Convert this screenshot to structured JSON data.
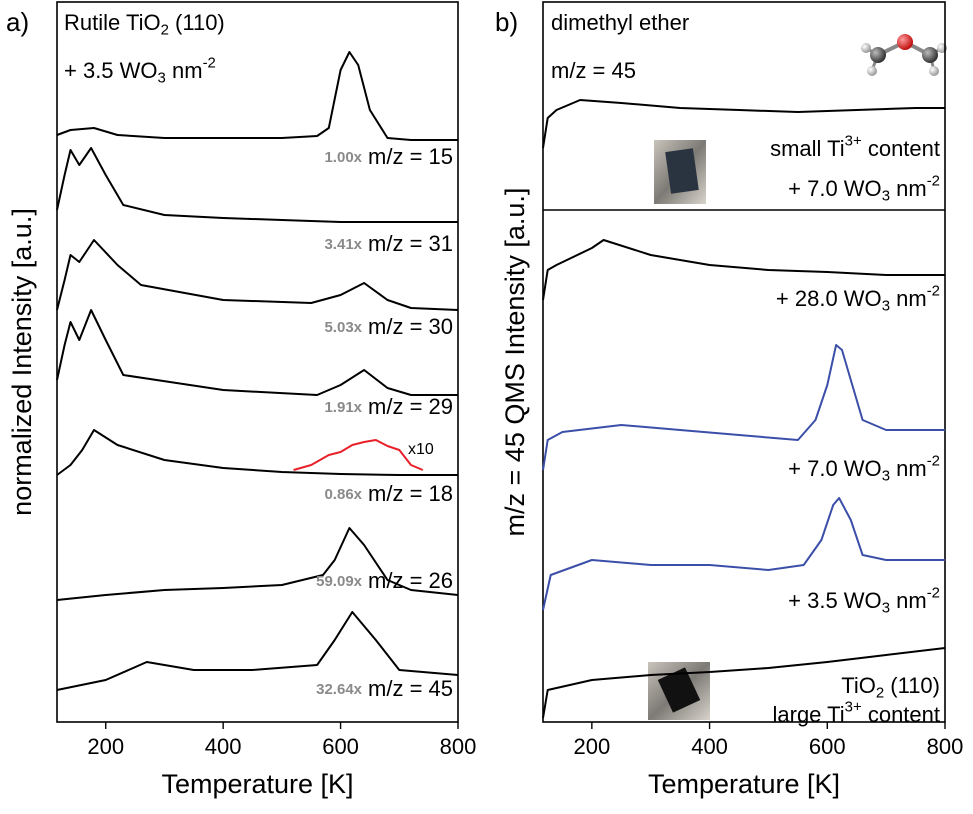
{
  "chart_data": [
    {
      "type": "line",
      "panel": "a)",
      "annotations": [
        [
          "Rutile TiO",
          "2",
          " (110)"
        ],
        [
          "+ 3.5 WO",
          "3",
          " nm",
          "-2"
        ]
      ],
      "x_label": "Temperature [K]",
      "y_label": "normalized Intensity [a.u.]",
      "xlim": [
        117,
        800
      ],
      "xticks": [
        200,
        400,
        600,
        800
      ],
      "ylim": [
        0,
        72
      ],
      "series": [
        {
          "name": [
            "m/z = 15"
          ],
          "factor": "1.00x",
          "color": "#000000",
          "x": [
            117,
            140,
            180,
            220,
            300,
            400,
            500,
            560,
            580,
            600,
            615,
            630,
            650,
            680,
            720,
            800
          ],
          "values": [
            58.7,
            59.2,
            59.4,
            58.7,
            58.4,
            58.4,
            58.4,
            58.6,
            59.4,
            65.2,
            67,
            65.7,
            61.2,
            58.4,
            58.2,
            58.2
          ]
        },
        {
          "name": [
            "m/z = 31"
          ],
          "factor": "3.41x",
          "color": "#000000",
          "x": [
            117,
            130,
            140,
            155,
            175,
            200,
            230,
            300,
            400,
            500,
            600,
            700,
            800
          ],
          "values": [
            51.2,
            54.7,
            57.2,
            55.7,
            57.4,
            54.7,
            51.7,
            50.7,
            50.4,
            50.2,
            50,
            50,
            50
          ]
        },
        {
          "name": [
            "m/z = 30"
          ],
          "factor": "5.03x",
          "color": "#000000",
          "x": [
            117,
            130,
            140,
            155,
            180,
            220,
            260,
            400,
            550,
            600,
            640,
            680,
            720,
            800
          ],
          "values": [
            41.2,
            44.2,
            46.7,
            46,
            48.2,
            45.7,
            43.7,
            42.2,
            41.9,
            42.7,
            43.9,
            42.2,
            41.4,
            41.2
          ]
        },
        {
          "name": [
            "m/z = 29"
          ],
          "factor": "1.91x",
          "color": "#000000",
          "x": [
            117,
            130,
            140,
            155,
            175,
            200,
            230,
            400,
            560,
            600,
            640,
            680,
            720,
            800
          ],
          "values": [
            34.2,
            37.7,
            40,
            38.2,
            41.2,
            38.2,
            34.7,
            33.2,
            32.7,
            33.7,
            35.2,
            33.4,
            32.7,
            32.7
          ]
        },
        {
          "name": [
            "m/z = 18"
          ],
          "factor": "0.86x",
          "color": "#000000",
          "x": [
            117,
            140,
            160,
            180,
            220,
            300,
            400,
            500,
            600,
            700,
            800
          ],
          "values": [
            24.7,
            25.7,
            27.2,
            29.2,
            27.7,
            26.2,
            25.4,
            25,
            24.8,
            24.7,
            24.7
          ]
        },
        {
          "name": [
            "x10"
          ],
          "color": "#e8202a",
          "x": [
            520,
            550,
            580,
            600,
            620,
            640,
            660,
            680,
            700,
            720,
            740
          ],
          "values": [
            25.2,
            25.7,
            26.7,
            27,
            27.7,
            28,
            28.2,
            27.6,
            27.2,
            25.7,
            25.2
          ]
        },
        {
          "name": [
            "m/z = 26"
          ],
          "factor": "59.09x",
          "color": "#000000",
          "x": [
            117,
            200,
            300,
            400,
            500,
            570,
            590,
            615,
            640,
            680,
            720,
            800
          ],
          "values": [
            12.2,
            12.7,
            13.2,
            13.4,
            13.7,
            14.7,
            16.2,
            19.4,
            17.7,
            14.2,
            13.2,
            12.7
          ]
        },
        {
          "name": [
            "m/z = 45"
          ],
          "factor": "32.64x",
          "color": "#000000",
          "x": [
            117,
            200,
            270,
            350,
            450,
            560,
            590,
            620,
            660,
            700,
            800
          ],
          "values": [
            3.2,
            4.2,
            6,
            5.2,
            5.2,
            5.7,
            8.2,
            11,
            8.2,
            5.2,
            4.7
          ]
        }
      ]
    },
    {
      "type": "line",
      "panel": "b)",
      "annotations": [
        [
          "dimethyl ether"
        ],
        [
          "m/z = 45"
        ],
        [
          "small Ti",
          "3+",
          " content"
        ],
        [
          "large Ti",
          "3+",
          " content"
        ]
      ],
      "x_label": "Temperature [K]",
      "y_label": "m/z = 45 QMS Intensity [a.u.]",
      "xlim": [
        117,
        800
      ],
      "xticks": [
        200,
        400,
        600,
        800
      ],
      "ylim": [
        0,
        72
      ],
      "series": [
        {
          "name": [
            "+ 7.0 WO",
            "3",
            " nm",
            "-2"
          ],
          "color": "#000000",
          "x": [
            117,
            125,
            140,
            180,
            250,
            350,
            450,
            550,
            650,
            750,
            800
          ],
          "values": [
            57.4,
            60.4,
            61.2,
            62.2,
            61.9,
            61.4,
            61.2,
            61,
            61.2,
            61.4,
            61.4
          ]
        },
        {
          "name": [
            "+ 28.0 WO",
            "3",
            " nm",
            "-2"
          ],
          "color": "#000000",
          "x": [
            117,
            125,
            140,
            200,
            220,
            300,
            400,
            500,
            600,
            700,
            800
          ],
          "values": [
            42.2,
            45.2,
            45.7,
            47.4,
            48.2,
            46.7,
            45.7,
            45.2,
            45,
            44.7,
            44.7
          ]
        },
        {
          "name": [
            "+ 7.0 WO",
            "3",
            " nm",
            "-2"
          ],
          "color": "#3c4fa8",
          "x": [
            117,
            125,
            150,
            250,
            350,
            450,
            550,
            580,
            600,
            615,
            625,
            640,
            660,
            700,
            800
          ],
          "values": [
            25.2,
            28.2,
            29,
            29.7,
            29.2,
            28.7,
            28.2,
            30.2,
            33.7,
            37.7,
            37.2,
            34.2,
            30.2,
            29.2,
            29.2
          ]
        },
        {
          "name": [
            "+ 3.5 WO",
            "3",
            " nm",
            "-2"
          ],
          "color": "#3c4fa8",
          "x": [
            117,
            130,
            200,
            300,
            400,
            500,
            560,
            590,
            610,
            620,
            640,
            660,
            700,
            800
          ],
          "values": [
            11.2,
            14.7,
            16.2,
            15.7,
            15.7,
            15.2,
            15.7,
            18.2,
            21.7,
            22.4,
            20.2,
            16.7,
            16.2,
            16.2
          ]
        },
        {
          "name": [
            "TiO",
            "2",
            " (110)"
          ],
          "color": "#000000",
          "x": [
            117,
            125,
            200,
            300,
            400,
            500,
            600,
            700,
            800
          ],
          "values": [
            0.4,
            3.2,
            4.2,
            4.7,
            5,
            5.4,
            6,
            6.7,
            7.4
          ]
        }
      ]
    }
  ]
}
